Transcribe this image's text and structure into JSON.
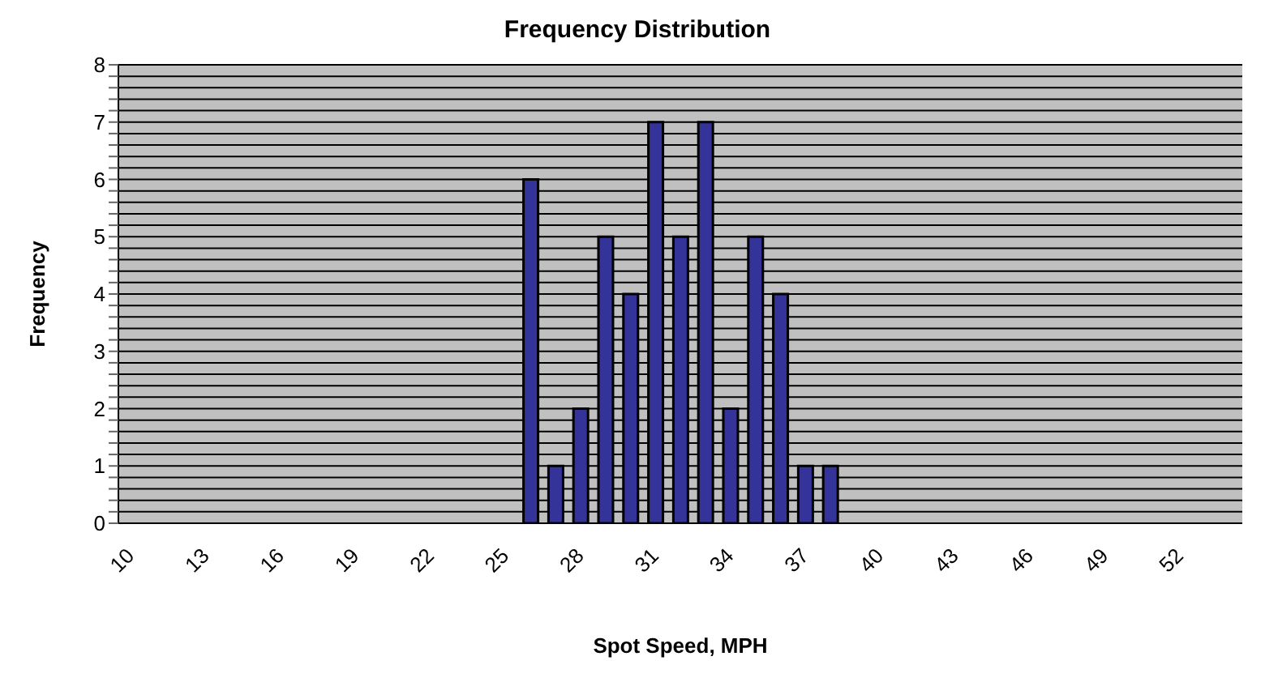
{
  "chart_data": {
    "type": "bar",
    "title": "Frequency Distribution",
    "xlabel": "Spot Speed, MPH",
    "ylabel": "Frequency",
    "categories": [
      "10",
      null,
      null,
      "13",
      null,
      null,
      "16",
      null,
      null,
      "19",
      null,
      null,
      "22",
      null,
      null,
      "25",
      null,
      null,
      "28",
      null,
      null,
      "31",
      null,
      null,
      "34",
      null,
      null,
      "37",
      null,
      null,
      "40",
      null,
      null,
      "43",
      null,
      null,
      "46",
      null,
      null,
      "49",
      null,
      null,
      "52",
      null,
      null
    ],
    "values": [
      0,
      0,
      0,
      0,
      0,
      0,
      0,
      0,
      0,
      0,
      0,
      0,
      0,
      0,
      0,
      0,
      6,
      1,
      2,
      5,
      4,
      7,
      5,
      7,
      2,
      5,
      4,
      1,
      1,
      0,
      0,
      0,
      0,
      0,
      0,
      0,
      0,
      0,
      0,
      0,
      0,
      0,
      0,
      0,
      0
    ],
    "color": "#333399",
    "ylim": [
      0,
      8
    ],
    "yticks": [
      0,
      {
        "value": 0.2,
        "label": null
      },
      {
        "value": 0.4,
        "label": null
      },
      {
        "value": 0.6,
        "label": null
      },
      {
        "value": 0.8,
        "label": null
      },
      1,
      {
        "value": 1.2,
        "label": null
      },
      {
        "value": 1.4,
        "label": null
      },
      {
        "value": 1.6,
        "label": null
      },
      {
        "value": 1.8,
        "label": null
      },
      2,
      {
        "value": 2.2,
        "label": null
      },
      {
        "value": 2.4,
        "label": null
      },
      {
        "value": 2.6,
        "label": null
      },
      {
        "value": 2.8,
        "label": null
      },
      3,
      {
        "value": 3.2,
        "label": null
      },
      {
        "value": 3.4,
        "label": null
      },
      {
        "value": 3.6,
        "label": null
      },
      {
        "value": 3.8,
        "label": null
      },
      4,
      {
        "value": 4.2,
        "label": null
      },
      {
        "value": 4.4,
        "label": null
      },
      {
        "value": 4.6,
        "label": null
      },
      {
        "value": 4.8,
        "label": null
      },
      5,
      {
        "value": 5.2,
        "label": null
      },
      {
        "value": 5.4,
        "label": null
      },
      {
        "value": 5.6,
        "label": null
      },
      {
        "value": 5.8,
        "label": null
      },
      6,
      {
        "value": 6.2,
        "label": null
      },
      {
        "value": 6.4,
        "label": null
      },
      {
        "value": 6.6,
        "label": null
      },
      {
        "value": 6.8,
        "label": null
      },
      7,
      {
        "value": 7.2,
        "label": null
      },
      {
        "value": 7.4,
        "label": null
      },
      {
        "value": 7.6,
        "label": null
      },
      {
        "value": 7.8,
        "label": null
      },
      8
    ],
    "grid": "y"
  }
}
